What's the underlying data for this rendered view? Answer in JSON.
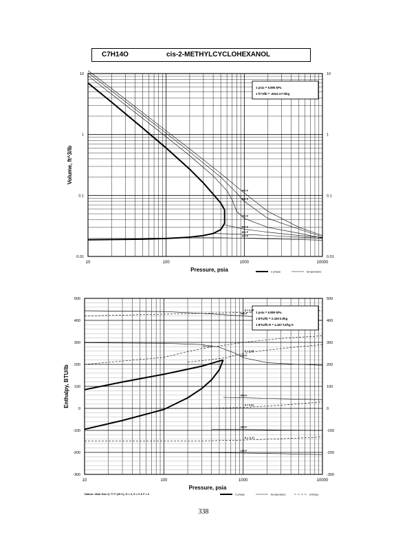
{
  "header": {
    "formula": "C7H14O",
    "compound": "cis-2-METHYLCYCLOHEXANOL"
  },
  "page_number": "338",
  "legend_2phase": "2 phase",
  "legend_temperature": "temperature",
  "legend_entropy": "entropy",
  "datum_note": "Datum: Ideal Gas @ 77 F (25 C), H = 0, S = 0 & F = 0",
  "chart_data": [
    {
      "type": "line",
      "title": "",
      "xlabel": "Pressure, psia",
      "ylabel": "Volume, ft^3/lb",
      "xscale": "log",
      "yscale": "log",
      "xlim": [
        10,
        10000
      ],
      "ylim": [
        0.01,
        10
      ],
      "xticks": [
        "10",
        "100",
        "1000",
        "10000"
      ],
      "yticks": [
        "0.01",
        "0.1",
        "1",
        "10"
      ],
      "conversions": [
        "1 psia = 6.895 kPa",
        "1 ft^3/lb = .0624 m^3/kg"
      ],
      "grid": true,
      "two_phase": {
        "vapor": [
          [
            10,
            7.0
          ],
          [
            20,
            3.4
          ],
          [
            50,
            1.28
          ],
          [
            100,
            0.6
          ],
          [
            200,
            0.27
          ],
          [
            300,
            0.16
          ],
          [
            400,
            0.105
          ],
          [
            500,
            0.075
          ],
          [
            560,
            0.058
          ]
        ],
        "liquid": [
          [
            10,
            0.0188
          ],
          [
            50,
            0.0192
          ],
          [
            100,
            0.0197
          ],
          [
            200,
            0.0207
          ],
          [
            300,
            0.022
          ],
          [
            400,
            0.0238
          ],
          [
            500,
            0.0275
          ],
          [
            560,
            0.035
          ],
          [
            560,
            0.058
          ]
        ]
      },
      "isotherms": [
        {
          "label": "900 F",
          "points": [
            [
              10,
              11.2
            ],
            [
              20,
              5.7
            ],
            [
              50,
              2.3
            ],
            [
              100,
              1.15
            ],
            [
              200,
              0.58
            ],
            [
              500,
              0.23
            ],
            [
              1000,
              0.11
            ],
            [
              2000,
              0.055
            ],
            [
              5000,
              0.03
            ],
            [
              10000,
              0.022
            ]
          ]
        },
        {
          "label": "800 F",
          "points": [
            [
              10,
              10.3
            ],
            [
              20,
              5.2
            ],
            [
              50,
              2.1
            ],
            [
              100,
              1.05
            ],
            [
              200,
              0.52
            ],
            [
              500,
              0.2
            ],
            [
              800,
              0.11
            ],
            [
              1000,
              0.08
            ],
            [
              2000,
              0.042
            ],
            [
              5000,
              0.028
            ],
            [
              10000,
              0.021
            ]
          ]
        },
        {
          "label": "700 F",
          "points": [
            [
              10,
              9.2
            ],
            [
              20,
              4.6
            ],
            [
              50,
              1.85
            ],
            [
              100,
              0.92
            ],
            [
              200,
              0.45
            ],
            [
              400,
              0.21
            ],
            [
              600,
              0.12
            ],
            [
              700,
              0.085
            ],
            [
              800,
              0.055
            ],
            [
              1000,
              0.042
            ],
            [
              2000,
              0.03
            ],
            [
              5000,
              0.024
            ],
            [
              10000,
              0.02
            ]
          ]
        },
        {
          "label": "500 F",
          "points": [
            [
              560,
              0.033
            ],
            [
              1000,
              0.028
            ],
            [
              2000,
              0.025
            ],
            [
              5000,
              0.022
            ],
            [
              10000,
              0.0205
            ]
          ]
        },
        {
          "label": "300 F",
          "points": [
            [
              400,
              0.0238
            ],
            [
              1000,
              0.023
            ],
            [
              3000,
              0.0215
            ],
            [
              10000,
              0.0198
            ]
          ]
        },
        {
          "label": "100 F",
          "points": [
            [
              200,
              0.0207
            ],
            [
              1000,
              0.0199
            ],
            [
              3000,
              0.0192
            ],
            [
              10000,
              0.0185
            ]
          ]
        }
      ]
    },
    {
      "type": "line",
      "title": "",
      "xlabel": "Pressure, psia",
      "ylabel": "Enthalpy, BTU/lb",
      "xscale": "log",
      "yscale": "linear",
      "xlim": [
        10,
        10000
      ],
      "ylim": [
        -300,
        500
      ],
      "xticks": [
        "10",
        "100",
        "1000",
        "10000"
      ],
      "yticks": [
        "-300",
        "-200",
        "-100",
        "0",
        "100",
        "200",
        "300",
        "400",
        "500"
      ],
      "conversions": [
        "1 psia = 6.895 kPa",
        "1 BTU/lb = 2.326 kJ/kg",
        "1 BTU/lb R = 4.187 kJ/kg K"
      ],
      "grid": true,
      "two_phase": {
        "vapor": [
          [
            10,
            85
          ],
          [
            30,
            120
          ],
          [
            100,
            155
          ],
          [
            200,
            178
          ],
          [
            300,
            192
          ],
          [
            400,
            205
          ],
          [
            500,
            215
          ],
          [
            560,
            220
          ]
        ],
        "liquid": [
          [
            10,
            -95
          ],
          [
            30,
            -55
          ],
          [
            100,
            -5
          ],
          [
            200,
            48
          ],
          [
            300,
            90
          ],
          [
            400,
            130
          ],
          [
            500,
            175
          ],
          [
            560,
            220
          ]
        ]
      },
      "isotherms": [
        {
          "label": "900 F",
          "points": [
            [
              10,
              444
            ],
            [
              100,
              440
            ],
            [
              300,
              432
            ],
            [
              1000,
              420
            ],
            [
              3000,
              408
            ],
            [
              10000,
              400
            ]
          ]
        },
        {
          "label": "700 F",
          "points": [
            [
              10,
              298
            ],
            [
              100,
              296
            ],
            [
              300,
              290
            ],
            [
              500,
              278
            ],
            [
              800,
              250
            ],
            [
              1000,
              230
            ],
            [
              2000,
              208
            ],
            [
              5000,
              200
            ],
            [
              10000,
              196
            ]
          ]
        },
        {
          "label": "500 F",
          "points": [
            [
              560,
              50
            ],
            [
              1000,
              48
            ],
            [
              3000,
              44
            ],
            [
              10000,
              40
            ]
          ]
        },
        {
          "label": "300 F",
          "points": [
            [
              400,
              -96
            ],
            [
              1000,
              -96
            ],
            [
              3000,
              -98
            ],
            [
              10000,
              -100
            ]
          ]
        },
        {
          "label": "100 F",
          "points": [
            [
              200,
              -200
            ],
            [
              1000,
              -203
            ],
            [
              3000,
              -206
            ],
            [
              10000,
              -210
            ]
          ]
        }
      ],
      "entropy_lines": [
        {
          "label": "S = 0.34",
          "points": [
            [
              10,
              420
            ],
            [
              100,
              428
            ],
            [
              300,
              432
            ],
            [
              1000,
              436
            ],
            [
              3000,
              440
            ],
            [
              10000,
              445
            ]
          ]
        },
        {
          "label": "S = 0.27",
          "points": [
            [
              10,
              200
            ],
            [
              100,
              232
            ],
            [
              200,
              258
            ],
            [
              300,
              272
            ],
            [
              1000,
              300
            ],
            [
              3000,
              318
            ],
            [
              10000,
              330
            ]
          ]
        },
        {
          "label": "S = 0.25",
          "points": [
            [
              200,
              210
            ],
            [
              400,
              222
            ],
            [
              600,
              230
            ],
            [
              1000,
              250
            ],
            [
              2000,
              265
            ],
            [
              5000,
              280
            ],
            [
              10000,
              290
            ]
          ]
        },
        {
          "label": "S = 0.02",
          "points": [
            [
              100,
              0
            ],
            [
              300,
              0
            ],
            [
              1000,
              4
            ],
            [
              3000,
              14
            ],
            [
              10000,
              30
            ]
          ]
        },
        {
          "label": "S = -0.17",
          "points": [
            [
              10,
              -148
            ],
            [
              100,
              -148
            ],
            [
              300,
              -148
            ],
            [
              1000,
              -144
            ],
            [
              3000,
              -138
            ],
            [
              10000,
              -130
            ]
          ]
        }
      ]
    }
  ]
}
